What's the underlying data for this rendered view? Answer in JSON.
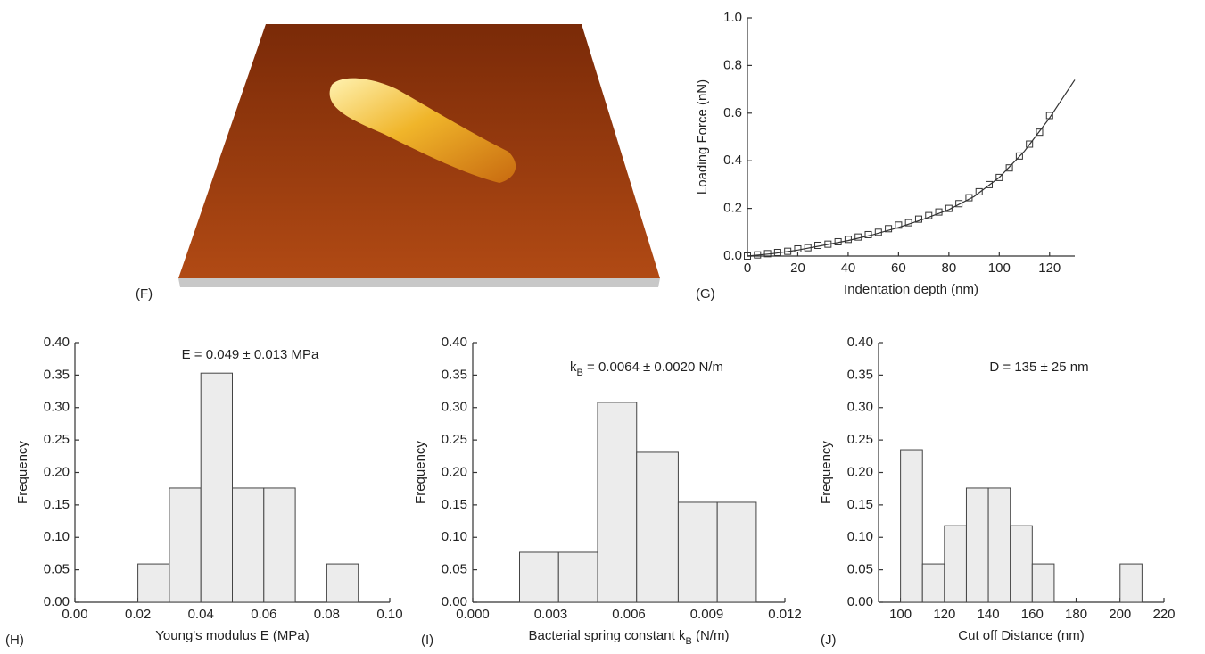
{
  "chart_data": [
    {
      "type": "image",
      "panel_label": "(F)"
    },
    {
      "type": "scatter",
      "panel_label": "(G)",
      "xlabel": "Indentation depth (nm)",
      "ylabel": "Loading Force (nN)",
      "xlim": [
        0,
        130
      ],
      "xticks": [
        0,
        20,
        40,
        60,
        80,
        100,
        120
      ],
      "ylim": [
        0,
        1.0
      ],
      "yticks": [
        {
          "value": 0,
          "label": "0.0"
        },
        0.2,
        0.4,
        0.6,
        0.8,
        {
          "value": 1.0,
          "label": "1.0"
        }
      ],
      "x": [
        0,
        4,
        8,
        12,
        16,
        20,
        24,
        28,
        32,
        36,
        40,
        44,
        48,
        52,
        56,
        60,
        64,
        68,
        72,
        76,
        80,
        84,
        88,
        92,
        96,
        100,
        104,
        108,
        112,
        116,
        120
      ],
      "values": [
        0.0,
        0.005,
        0.01,
        0.015,
        0.02,
        0.03,
        0.035,
        0.045,
        0.05,
        0.06,
        0.07,
        0.08,
        0.09,
        0.1,
        0.115,
        0.13,
        0.14,
        0.155,
        0.17,
        0.185,
        0.2,
        0.22,
        0.245,
        0.27,
        0.3,
        0.33,
        0.37,
        0.42,
        0.47,
        0.52,
        0.59
      ],
      "line": {
        "x": [
          0,
          10,
          20,
          30,
          40,
          50,
          60,
          70,
          80,
          90,
          100,
          110,
          120,
          130
        ],
        "values": [
          0.0,
          0.01,
          0.025,
          0.045,
          0.065,
          0.09,
          0.12,
          0.155,
          0.195,
          0.25,
          0.33,
          0.44,
          0.58,
          0.74
        ]
      }
    },
    {
      "type": "histogram",
      "panel_label": "(H)",
      "xlabel": "Young's modulus E (MPa)",
      "ylabel": "Frequency",
      "annotation": "E = 0.049 ± 0.013 MPa",
      "xlim": [
        0,
        0.1
      ],
      "xticks": [
        {
          "value": 0,
          "label": "0.00"
        },
        0.02,
        0.04,
        0.06,
        0.08,
        {
          "value": 0.1,
          "label": "0.10"
        }
      ],
      "ylim": [
        0,
        0.4
      ],
      "yticks": [
        {
          "value": 0,
          "label": "0.00"
        },
        0.05,
        {
          "value": 0.1,
          "label": "0.10"
        },
        0.15,
        {
          "value": 0.2,
          "label": "0.20"
        },
        0.25,
        {
          "value": 0.3,
          "label": "0.30"
        },
        0.35,
        {
          "value": 0.4,
          "label": "0.40"
        }
      ],
      "bins": [
        0.02,
        0.03,
        0.04,
        0.05,
        0.06,
        0.07,
        0.08,
        0.09
      ],
      "values": [
        0.059,
        0.176,
        0.353,
        0.176,
        0.176,
        0,
        0.059
      ]
    },
    {
      "type": "histogram",
      "panel_label": "(I)",
      "xlabel": [
        "Bacterial spring constant k",
        "B",
        " (N/m)"
      ],
      "ylabel": "Frequency",
      "annotation": [
        "k",
        "B",
        " = 0.0064 ± 0.0020 N/m"
      ],
      "xlim": [
        0,
        0.012
      ],
      "xticks": [
        {
          "value": 0,
          "label": "0.000"
        },
        0.003,
        0.006,
        0.009,
        0.012
      ],
      "ylim": [
        0,
        0.4
      ],
      "yticks": [
        {
          "value": 0,
          "label": "0.00"
        },
        0.05,
        {
          "value": 0.1,
          "label": "0.10"
        },
        0.15,
        {
          "value": 0.2,
          "label": "0.20"
        },
        0.25,
        {
          "value": 0.3,
          "label": "0.30"
        },
        0.35,
        {
          "value": 0.4,
          "label": "0.40"
        }
      ],
      "bins": [
        0.0018,
        0.0033,
        0.0048,
        0.0063,
        0.0079,
        0.0094,
        0.0109
      ],
      "values": [
        0.077,
        0.077,
        0.308,
        0.231,
        0.154,
        0.154
      ]
    },
    {
      "type": "histogram",
      "panel_label": "(J)",
      "xlabel": "Cut off  Distance (nm)",
      "ylabel": "Frequency",
      "annotation": "D = 135 ± 25 nm",
      "xlim": [
        90,
        220
      ],
      "xticks": [
        100,
        120,
        140,
        160,
        180,
        200,
        220
      ],
      "ylim": [
        0,
        0.4
      ],
      "yticks": [
        {
          "value": 0,
          "label": "0.00"
        },
        0.05,
        {
          "value": 0.1,
          "label": "0.10"
        },
        0.15,
        {
          "value": 0.2,
          "label": "0.20"
        },
        0.25,
        {
          "value": 0.3,
          "label": "0.30"
        },
        0.35,
        {
          "value": 0.4,
          "label": "0.40"
        }
      ],
      "bins": [
        100,
        110,
        120,
        130,
        140,
        150,
        160,
        170,
        180,
        190,
        200,
        210
      ],
      "values": [
        0.235,
        0.059,
        0.118,
        0.176,
        0.176,
        0.118,
        0.059,
        0,
        0,
        0,
        0.059
      ]
    }
  ]
}
